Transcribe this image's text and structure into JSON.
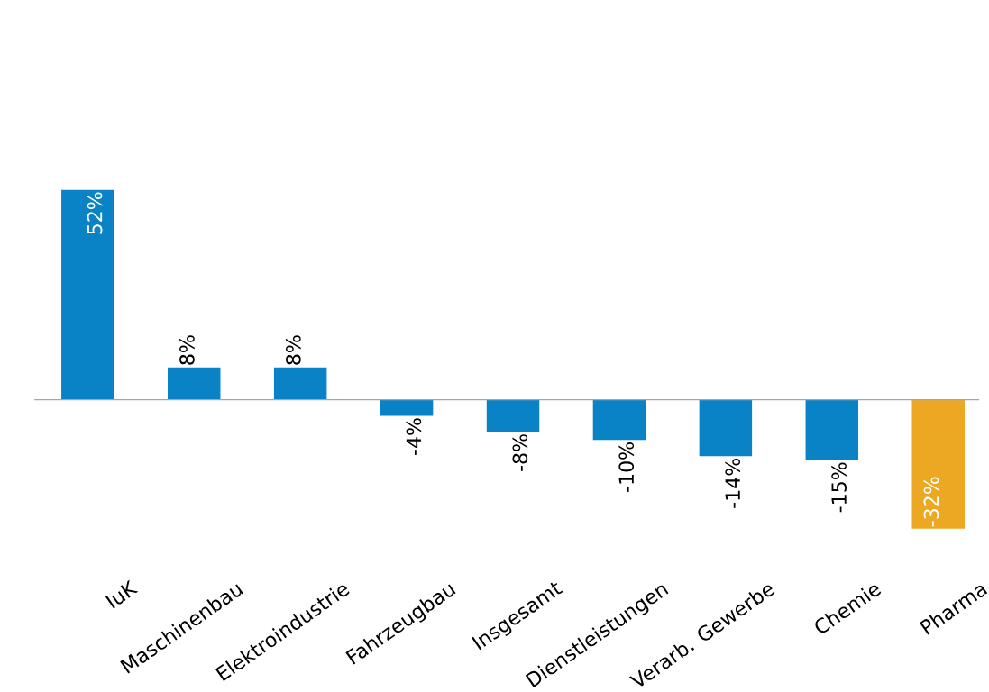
{
  "chart_data": {
    "type": "bar",
    "categories": [
      "IuK",
      "Maschinenbau",
      "Elektroindustrie",
      "Fahrzeugbau",
      "Insgesamt",
      "Dienstleistungen",
      "Verarb. Gewerbe",
      "Chemie",
      "Pharma"
    ],
    "values": [
      52,
      8,
      8,
      -4,
      -8,
      -10,
      -14,
      -15,
      -32
    ],
    "colors": [
      "#0a82c6",
      "#0a82c6",
      "#0a82c6",
      "#0a82c6",
      "#0a82c6",
      "#0a82c6",
      "#0a82c6",
      "#0a82c6",
      "#eca823"
    ],
    "value_labels": [
      "52%",
      "8%",
      "8%",
      "-4%",
      "-8%",
      "-10%",
      "-14%",
      "-15%",
      "-32%"
    ]
  }
}
